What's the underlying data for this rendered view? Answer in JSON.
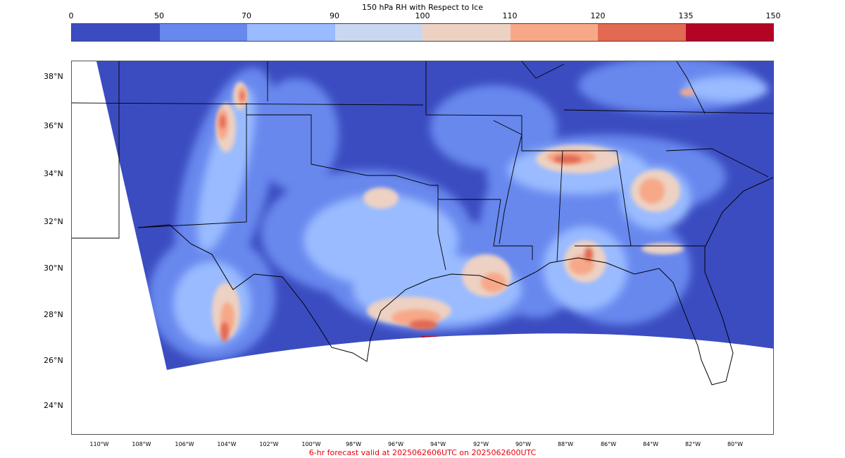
{
  "colorbar": {
    "title": "150 hPa RH with Respect to Ice",
    "ticks": [
      "0",
      "50",
      "70",
      "90",
      "100",
      "110",
      "120",
      "135",
      "150"
    ],
    "colors": [
      "#3b4cc0",
      "#6788ee",
      "#9abbff",
      "#c9d7f0",
      "#edd1c2",
      "#f7a889",
      "#e26952",
      "#b40426"
    ]
  },
  "map": {
    "lat_labels": [
      "38°N",
      "36°N",
      "34°N",
      "32°N",
      "30°N",
      "28°N",
      "26°N",
      "24°N"
    ],
    "lon_labels": [
      "110°W",
      "108°W",
      "106°W",
      "104°W",
      "102°W",
      "100°W",
      "98°W",
      "96°W",
      "94°W",
      "92°W",
      "90°W",
      "88°W",
      "86°W",
      "84°W",
      "82°W",
      "80°W"
    ]
  },
  "footer": "6-hr forecast valid at 2025062606UTC on 2025062600UTC"
}
